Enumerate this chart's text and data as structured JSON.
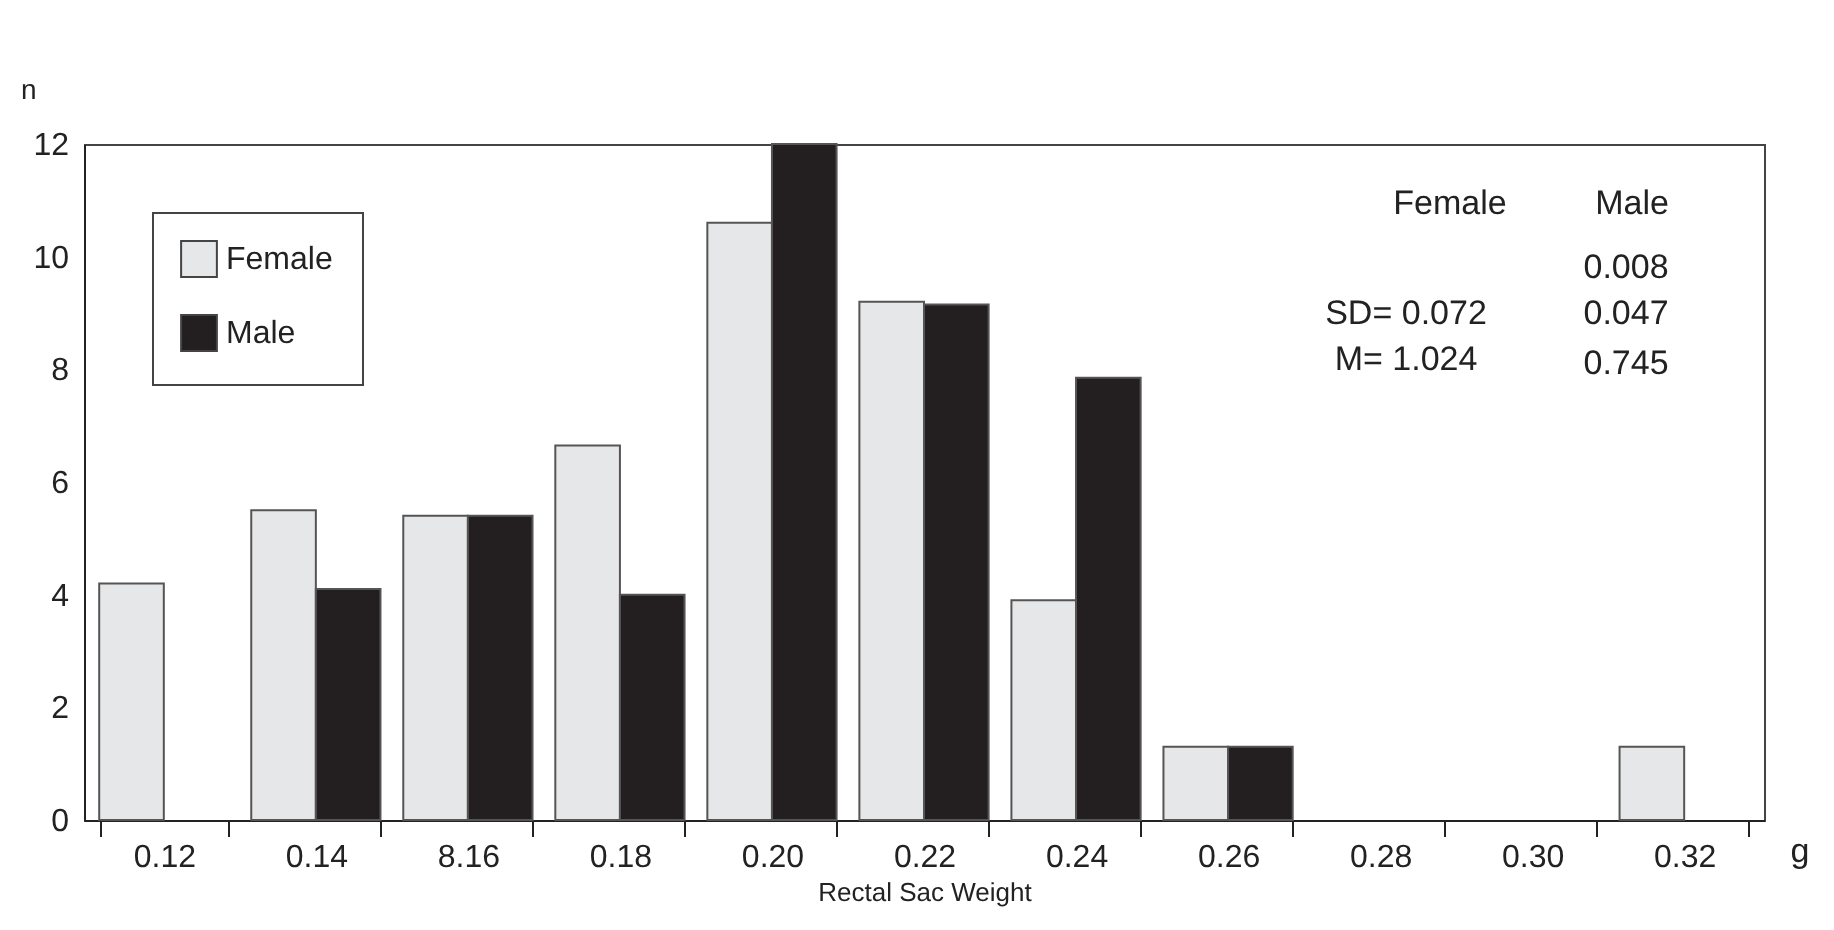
{
  "chart_data": {
    "type": "bar",
    "xlabel": "Rectal Sac Weight",
    "ylabel": "n",
    "categories": [
      "0.12",
      "0.14",
      "8.16",
      "0.18",
      "0.20",
      "0.22",
      "0.24",
      "0.26",
      "0.28",
      "0.30",
      "0.32"
    ],
    "series": [
      {
        "name": "Female",
        "color": "#e6e7e9",
        "values": [
          4.2,
          5.5,
          5.4,
          6.65,
          10.6,
          9.2,
          3.9,
          1.3,
          null,
          null,
          1.3
        ]
      },
      {
        "name": "Male",
        "color": "#231f20",
        "values": [
          null,
          4.1,
          5.4,
          4.0,
          12,
          9.15,
          7.85,
          1.3,
          null,
          null,
          null
        ]
      }
    ],
    "ylim": [
      0,
      12
    ],
    "yticks": [
      0,
      2,
      4,
      6,
      8,
      10,
      12
    ],
    "grid": false,
    "legend": "top left",
    "annotations": [
      "Female",
      "Male",
      "0.008",
      "SD= 0.072",
      "0.047",
      "M= 1.024",
      "0.745",
      "g"
    ]
  }
}
